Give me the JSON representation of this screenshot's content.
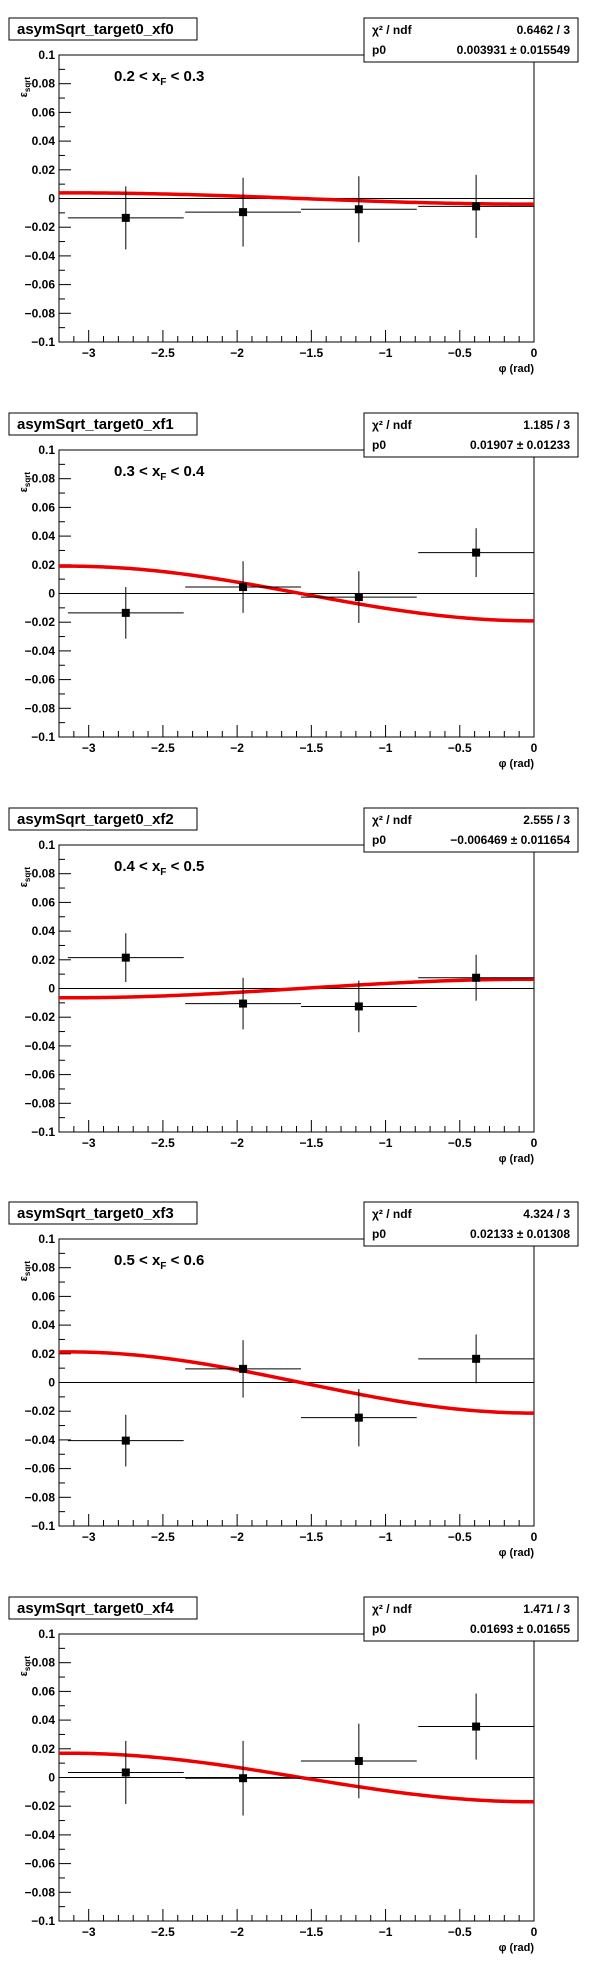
{
  "chart_data": [
    {
      "type": "scatter",
      "title": "asymSqrt_target0_xf0",
      "xlabel": "φ (rad)",
      "ylabel": "ε",
      "ylabel_sub": "sqrt",
      "xlim": [
        -3.2,
        0
      ],
      "ylim": [
        -0.1,
        0.1
      ],
      "x_ticks": [
        "−3",
        "−2.5",
        "−2",
        "−1.5",
        "−1",
        "−0.5",
        "0"
      ],
      "y_ticks": [
        "0.1",
        "0.08",
        "0.06",
        "0.04",
        "0.02",
        "0",
        "−0.02",
        "−0.04",
        "−0.06",
        "−0.08",
        "−0.1"
      ],
      "range_label": {
        "pre": "0.2 < x",
        "sub": "F",
        "post": " < 0.3"
      },
      "stats": {
        "chi2_label": "χ² / ndf",
        "chi2_value": "0.6462 / 3",
        "p0_label": "p0",
        "p0_value": "0.003931 ± 0.015549"
      },
      "points": [
        {
          "x": -2.75,
          "y": -0.0135,
          "xerr": 0.39,
          "yerr": 0.022
        },
        {
          "x": -1.96,
          "y": -0.0095,
          "xerr": 0.39,
          "yerr": 0.024
        },
        {
          "x": -1.18,
          "y": -0.0075,
          "xerr": 0.39,
          "yerr": 0.023
        },
        {
          "x": -0.39,
          "y": -0.0055,
          "xerr": 0.39,
          "yerr": 0.022
        }
      ],
      "fit_p0": 0.003931,
      "fit_color": "#ee0000"
    },
    {
      "type": "scatter",
      "title": "asymSqrt_target0_xf1",
      "xlabel": "φ (rad)",
      "ylabel": "ε",
      "ylabel_sub": "sqrt",
      "xlim": [
        -3.2,
        0
      ],
      "ylim": [
        -0.1,
        0.1
      ],
      "x_ticks": [
        "−3",
        "−2.5",
        "−2",
        "−1.5",
        "−1",
        "−0.5",
        "0"
      ],
      "y_ticks": [
        "0.1",
        "0.08",
        "0.06",
        "0.04",
        "0.02",
        "0",
        "−0.02",
        "−0.04",
        "−0.06",
        "−0.08",
        "−0.1"
      ],
      "range_label": {
        "pre": "0.3 < x",
        "sub": "F",
        "post": " < 0.4"
      },
      "stats": {
        "chi2_label": "χ² / ndf",
        "chi2_value": "1.185 / 3",
        "p0_label": "p0",
        "p0_value": "0.01907 ± 0.01233"
      },
      "points": [
        {
          "x": -2.75,
          "y": -0.0135,
          "xerr": 0.39,
          "yerr": 0.018
        },
        {
          "x": -1.96,
          "y": 0.0045,
          "xerr": 0.39,
          "yerr": 0.018
        },
        {
          "x": -1.18,
          "y": -0.0025,
          "xerr": 0.39,
          "yerr": 0.018
        },
        {
          "x": -0.39,
          "y": 0.0285,
          "xerr": 0.39,
          "yerr": 0.017
        }
      ],
      "fit_p0": 0.01907,
      "fit_color": "#ee0000"
    },
    {
      "type": "scatter",
      "title": "asymSqrt_target0_xf2",
      "xlabel": "φ (rad)",
      "ylabel": "ε",
      "ylabel_sub": "sqrt",
      "xlim": [
        -3.2,
        0
      ],
      "ylim": [
        -0.1,
        0.1
      ],
      "x_ticks": [
        "−3",
        "−2.5",
        "−2",
        "−1.5",
        "−1",
        "−0.5",
        "0"
      ],
      "y_ticks": [
        "0.1",
        "0.08",
        "0.06",
        "0.04",
        "0.02",
        "0",
        "−0.02",
        "−0.04",
        "−0.06",
        "−0.08",
        "−0.1"
      ],
      "range_label": {
        "pre": "0.4 < x",
        "sub": "F",
        "post": " < 0.5"
      },
      "stats": {
        "chi2_label": "χ² / ndf",
        "chi2_value": "2.555 / 3",
        "p0_label": "p0",
        "p0_value": "−0.006469 ± 0.011654"
      },
      "points": [
        {
          "x": -2.75,
          "y": 0.0215,
          "xerr": 0.39,
          "yerr": 0.017
        },
        {
          "x": -1.96,
          "y": -0.0105,
          "xerr": 0.39,
          "yerr": 0.018
        },
        {
          "x": -1.18,
          "y": -0.0125,
          "xerr": 0.39,
          "yerr": 0.018
        },
        {
          "x": -0.39,
          "y": 0.0075,
          "xerr": 0.39,
          "yerr": 0.016
        }
      ],
      "fit_p0": -0.006469,
      "fit_color": "#ee0000"
    },
    {
      "type": "scatter",
      "title": "asymSqrt_target0_xf3",
      "xlabel": "φ (rad)",
      "ylabel": "ε",
      "ylabel_sub": "sqrt",
      "xlim": [
        -3.2,
        0
      ],
      "ylim": [
        -0.1,
        0.1
      ],
      "x_ticks": [
        "−3",
        "−2.5",
        "−2",
        "−1.5",
        "−1",
        "−0.5",
        "0"
      ],
      "y_ticks": [
        "0.1",
        "0.08",
        "0.06",
        "0.04",
        "0.02",
        "0",
        "−0.02",
        "−0.04",
        "−0.06",
        "−0.08",
        "−0.1"
      ],
      "range_label": {
        "pre": "0.5 < x",
        "sub": "F",
        "post": " < 0.6"
      },
      "stats": {
        "chi2_label": "χ² / ndf",
        "chi2_value": "4.324 / 3",
        "p0_label": "p0",
        "p0_value": "0.02133 ± 0.01308"
      },
      "points": [
        {
          "x": -2.75,
          "y": -0.0405,
          "xerr": 0.39,
          "yerr": 0.018
        },
        {
          "x": -1.96,
          "y": 0.0095,
          "xerr": 0.39,
          "yerr": 0.02
        },
        {
          "x": -1.18,
          "y": -0.0245,
          "xerr": 0.39,
          "yerr": 0.02
        },
        {
          "x": -0.39,
          "y": 0.0165,
          "xerr": 0.39,
          "yerr": 0.017
        }
      ],
      "fit_p0": 0.02133,
      "fit_color": "#ee0000"
    },
    {
      "type": "scatter",
      "title": "asymSqrt_target0_xf4",
      "xlabel": "φ (rad)",
      "ylabel": "ε",
      "ylabel_sub": "sqrt",
      "xlim": [
        -3.2,
        0
      ],
      "ylim": [
        -0.1,
        0.1
      ],
      "x_ticks": [
        "−3",
        "−2.5",
        "−2",
        "−1.5",
        "−1",
        "−0.5",
        "0"
      ],
      "y_ticks": [
        "0.1",
        "0.08",
        "0.06",
        "0.04",
        "0.02",
        "0",
        "−0.02",
        "−0.04",
        "−0.06",
        "−0.08",
        "−0.1"
      ],
      "range_label": {
        "pre": "",
        "sub": "",
        "post": ""
      },
      "stats": {
        "chi2_label": "χ² / ndf",
        "chi2_value": "1.471 / 3",
        "p0_label": "p0",
        "p0_value": "0.01693 ± 0.01655"
      },
      "points": [
        {
          "x": -2.75,
          "y": 0.0035,
          "xerr": 0.39,
          "yerr": 0.022
        },
        {
          "x": -1.96,
          "y": -0.0005,
          "xerr": 0.39,
          "yerr": 0.026
        },
        {
          "x": -1.18,
          "y": 0.0115,
          "xerr": 0.39,
          "yerr": 0.026
        },
        {
          "x": -0.39,
          "y": 0.0355,
          "xerr": 0.39,
          "yerr": 0.023
        }
      ],
      "fit_p0": 0.01693,
      "fit_color": "#ee0000"
    }
  ]
}
